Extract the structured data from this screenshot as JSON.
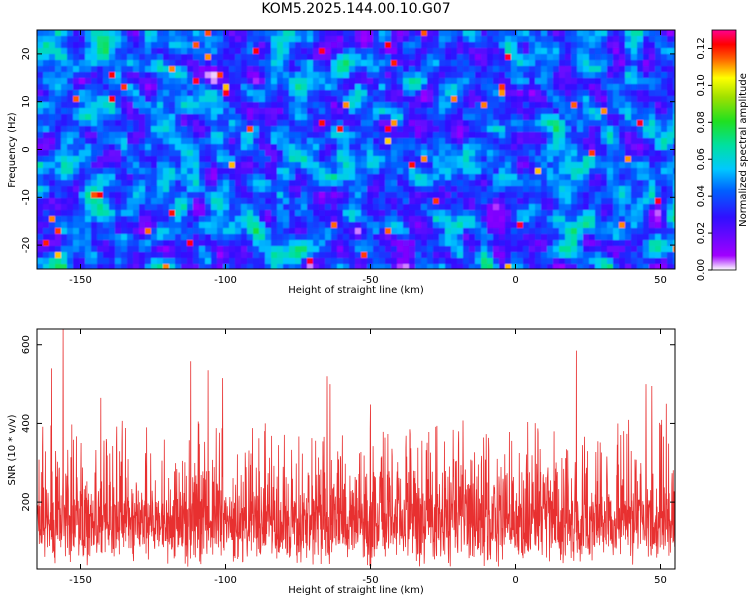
{
  "title": "KOM5.2025.144.00.10.G07",
  "colors": {
    "snr_line": "#e83030",
    "frame": "#000000",
    "background": "#ffffff"
  },
  "chart_data": [
    {
      "type": "heatmap",
      "title": "KOM5.2025.144.00.10.G07",
      "xlabel": "Height of straight line (km)",
      "ylabel": "Frequency (Hz)",
      "xlim": [
        -165,
        55
      ],
      "ylim": [
        -25,
        25
      ],
      "xticks": [
        -150,
        -100,
        -50,
        0,
        50
      ],
      "yticks": [
        -20,
        -10,
        0,
        10,
        20
      ],
      "colorbar": {
        "label": "Normalized spectral amplitude",
        "range": [
          0,
          0.13
        ],
        "ticks": [
          "0.00",
          "0.02",
          "0.04",
          "0.06",
          "0.08",
          "0.10",
          "0.12"
        ],
        "colormap": "rainbow (white-purple-blue-cyan-green-yellow-red-magenta)"
      },
      "notes": "noise-like speckle field; typical amplitude 0.02-0.05 with scattered peaks up to ~0.12"
    },
    {
      "type": "line",
      "xlabel": "Height of straight line (km)",
      "ylabel": "SNR (10 * v/v)",
      "xlim": [
        -165,
        55
      ],
      "ylim": [
        30,
        640
      ],
      "xticks": [
        -150,
        -100,
        -50,
        0,
        50
      ],
      "yticks": [
        200,
        400,
        600
      ],
      "grid": false,
      "baseline_range": [
        80,
        260
      ],
      "peaks": [
        {
          "x": -156,
          "y": 640
        },
        {
          "x": -160,
          "y": 540
        },
        {
          "x": -112,
          "y": 558
        },
        {
          "x": -106,
          "y": 535
        },
        {
          "x": -101,
          "y": 515
        },
        {
          "x": -143,
          "y": 465
        },
        {
          "x": -65,
          "y": 520
        },
        {
          "x": -50,
          "y": 448
        },
        {
          "x": -64,
          "y": 500
        },
        {
          "x": 21,
          "y": 585
        },
        {
          "x": 45,
          "y": 500
        },
        {
          "x": 47,
          "y": 495
        },
        {
          "x": 52,
          "y": 450
        }
      ]
    }
  ]
}
